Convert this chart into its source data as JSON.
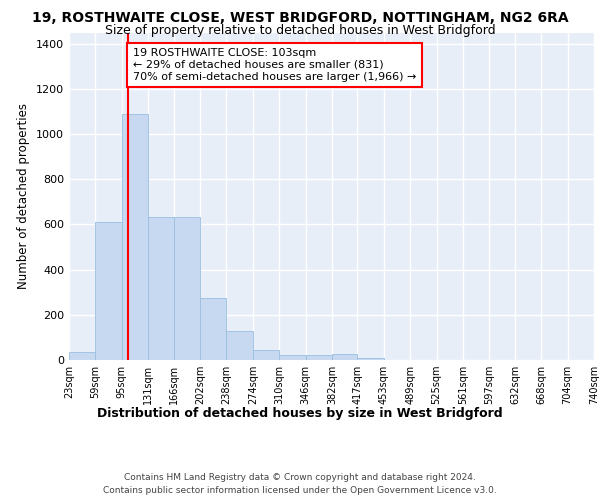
{
  "title": "19, ROSTHWAITE CLOSE, WEST BRIDGFORD, NOTTINGHAM, NG2 6RA",
  "subtitle": "Size of property relative to detached houses in West Bridgford",
  "xlabel": "Distribution of detached houses by size in West Bridgford",
  "ylabel": "Number of detached properties",
  "bar_values": [
    35,
    610,
    1090,
    635,
    635,
    275,
    130,
    45,
    20,
    20,
    25,
    10,
    0,
    0,
    0,
    0,
    0,
    0,
    0,
    0
  ],
  "bin_edges": [
    23,
    59,
    95,
    131,
    166,
    202,
    238,
    274,
    310,
    346,
    382,
    417,
    453,
    489,
    525,
    561,
    597,
    632,
    668,
    704,
    740
  ],
  "tick_labels": [
    "23sqm",
    "59sqm",
    "95sqm",
    "131sqm",
    "166sqm",
    "202sqm",
    "238sqm",
    "274sqm",
    "310sqm",
    "346sqm",
    "382sqm",
    "417sqm",
    "453sqm",
    "489sqm",
    "525sqm",
    "561sqm",
    "597sqm",
    "632sqm",
    "668sqm",
    "704sqm",
    "740sqm"
  ],
  "bar_color": "#c6d9f1",
  "bar_edge_color": "#9abfdf",
  "background_color": "#e8eef8",
  "grid_color": "#ffffff",
  "red_line_x": 103,
  "ylim": [
    0,
    1450
  ],
  "yticks": [
    0,
    200,
    400,
    600,
    800,
    1000,
    1200,
    1400
  ],
  "annotation_line1": "19 ROSTHWAITE CLOSE: 103sqm",
  "annotation_line2": "← 29% of detached houses are smaller (831)",
  "annotation_line3": "70% of semi-detached houses are larger (1,966) →",
  "footer_line1": "Contains HM Land Registry data © Crown copyright and database right 2024.",
  "footer_line2": "Contains public sector information licensed under the Open Government Licence v3.0.",
  "title_fontsize": 10,
  "subtitle_fontsize": 9,
  "annotation_fontsize": 8,
  "tick_fontsize": 7,
  "ylabel_fontsize": 8.5,
  "xlabel_fontsize": 9,
  "footer_fontsize": 6.5
}
